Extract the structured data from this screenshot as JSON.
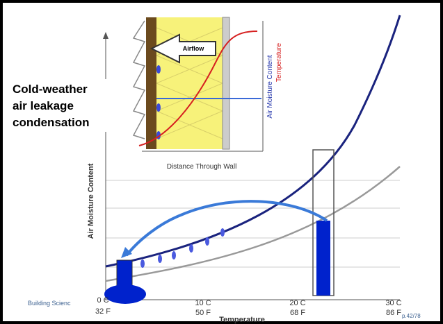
{
  "title_lines": [
    "Cold-weather",
    "air leakage",
    "condensation"
  ],
  "inset": {
    "arrow_label": "Airflow",
    "y_labels": [
      "Air Moisture Content",
      "Temperature"
    ],
    "x_label": "Distance Through Wall"
  },
  "chart": {
    "y_label": "Air Moisture Content",
    "x_label": "Temperature",
    "x_ticks": [
      {
        "celsius": "0 C",
        "fahrenheit": "32 F"
      },
      {
        "celsius": "10 C",
        "fahrenheit": "50 F"
      },
      {
        "celsius": "20 C",
        "fahrenheit": "68 F"
      },
      {
        "celsius": "30 C",
        "fahrenheit": "86 F"
      }
    ]
  },
  "footer": {
    "left": "Building Scienc",
    "page": "p.42/78"
  }
}
